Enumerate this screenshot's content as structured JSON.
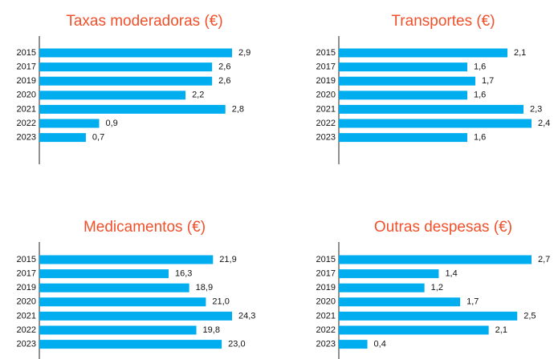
{
  "chart_data": [
    {
      "type": "bar",
      "orientation": "horizontal",
      "title": "Taxas moderadoras (€)",
      "color": "#00aeef",
      "categories": [
        "2015",
        "2017",
        "2019",
        "2020",
        "2021",
        "2022",
        "2023"
      ],
      "values": [
        2.9,
        2.6,
        2.6,
        2.2,
        2.8,
        0.9,
        0.7
      ],
      "value_labels": [
        "2,9",
        "2,6",
        "2,6",
        "2,2",
        "2,8",
        "0,9",
        "0,7"
      ]
    },
    {
      "type": "bar",
      "orientation": "horizontal",
      "title": "Transportes (€)",
      "color": "#00aeef",
      "categories": [
        "2015",
        "2017",
        "2019",
        "2020",
        "2021",
        "2022",
        "2023"
      ],
      "values": [
        2.1,
        1.6,
        1.7,
        1.6,
        2.3,
        2.4,
        1.6
      ],
      "value_labels": [
        "2,1",
        "1,6",
        "1,7",
        "1,6",
        "2,3",
        "2,4",
        "1,6"
      ]
    },
    {
      "type": "bar",
      "orientation": "horizontal",
      "title": "Medicamentos (€)",
      "color": "#00aeef",
      "categories": [
        "2015",
        "2017",
        "2019",
        "2020",
        "2021",
        "2022",
        "2023"
      ],
      "values": [
        21.9,
        16.3,
        18.9,
        21.0,
        24.3,
        19.8,
        23.0
      ],
      "value_labels": [
        "21,9",
        "16,3",
        "18,9",
        "21,0",
        "24,3",
        "19,8",
        "23,0"
      ]
    },
    {
      "type": "bar",
      "orientation": "horizontal",
      "title": "Outras despesas (€)",
      "color": "#00aeef",
      "categories": [
        "2015",
        "2017",
        "2019",
        "2020",
        "2021",
        "2022",
        "2023"
      ],
      "values": [
        2.7,
        1.4,
        1.2,
        1.7,
        2.5,
        2.1,
        0.4
      ],
      "value_labels": [
        "2,7",
        "1,4",
        "1,2",
        "1,7",
        "2,5",
        "2,1",
        "0,4"
      ]
    }
  ]
}
